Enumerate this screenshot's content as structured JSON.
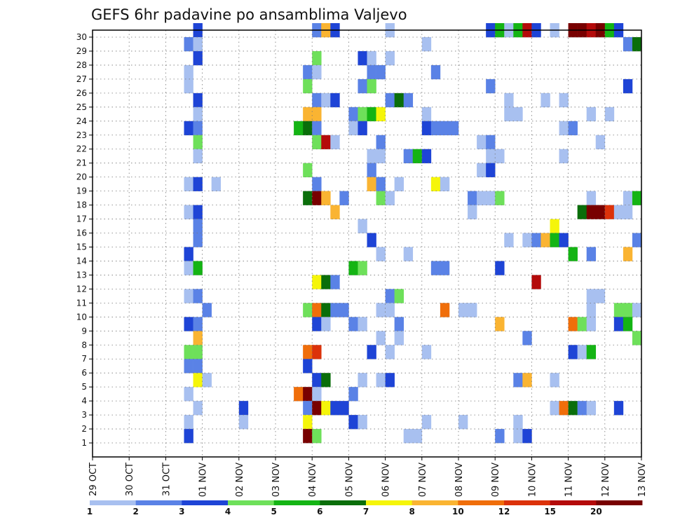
{
  "chart_data": {
    "type": "heatmap",
    "title": "GEFS 6hr padavine po ansamblima Valjevo",
    "xlabel": "",
    "ylabel": "",
    "x_ticks": [
      "29 OCT",
      "30 OCT",
      "31 OCT",
      "01 NOV",
      "02 NOV",
      "03 NOV",
      "04 NOV",
      "05 NOV",
      "06 NOV",
      "07 NOV",
      "08 NOV",
      "09 NOV",
      "10 NOV",
      "11 NOV",
      "12 NOV",
      "13 NOV"
    ],
    "x_unit": "6-hour steps from 29 OCT 00Z",
    "y_ticks": [
      1,
      2,
      3,
      4,
      5,
      6,
      7,
      8,
      9,
      10,
      11,
      12,
      13,
      14,
      15,
      16,
      17,
      18,
      19,
      20,
      21,
      22,
      23,
      24,
      25,
      26,
      27,
      28,
      29,
      30
    ],
    "y_range": [
      0,
      30
    ],
    "grid": true,
    "colorbar": {
      "position": "bottom",
      "labels": [
        "1",
        "2",
        "3",
        "4",
        "5",
        "6",
        "7",
        "8",
        "10",
        "12",
        "15",
        "20"
      ],
      "colors": [
        "#a8c0f0",
        "#5a82e6",
        "#1e44d6",
        "#6ee05a",
        "#14b414",
        "#0a6e0a",
        "#f5f50a",
        "#fab432",
        "#f06e0a",
        "#dc320a",
        "#b40a0a",
        "#780000"
      ]
    },
    "cells": [
      [
        11,
        30,
        3
      ],
      [
        24,
        30,
        2
      ],
      [
        25,
        30,
        8
      ],
      [
        26,
        30,
        3
      ],
      [
        32,
        30,
        1
      ],
      [
        43,
        30,
        3
      ],
      [
        44,
        30,
        5
      ],
      [
        45,
        30,
        1
      ],
      [
        46,
        30,
        5
      ],
      [
        47,
        30,
        11
      ],
      [
        48,
        30,
        3
      ],
      [
        50,
        30,
        1
      ],
      [
        52,
        30,
        12
      ],
      [
        53,
        30,
        12
      ],
      [
        54,
        30,
        11
      ],
      [
        55,
        30,
        12
      ],
      [
        56,
        30,
        5
      ],
      [
        57,
        30,
        3
      ],
      [
        10,
        29,
        2
      ],
      [
        11,
        29,
        1
      ],
      [
        36,
        29,
        1
      ],
      [
        58,
        29,
        2
      ],
      [
        59,
        29,
        6
      ],
      [
        11,
        28,
        3
      ],
      [
        24,
        28,
        4
      ],
      [
        29,
        28,
        3
      ],
      [
        30,
        28,
        1
      ],
      [
        32,
        28,
        1
      ],
      [
        10,
        27,
        1
      ],
      [
        23,
        27,
        2
      ],
      [
        24,
        27,
        1
      ],
      [
        30,
        27,
        2
      ],
      [
        31,
        27,
        2
      ],
      [
        37,
        27,
        2
      ],
      [
        10,
        26,
        1
      ],
      [
        23,
        26,
        4
      ],
      [
        29,
        26,
        2
      ],
      [
        30,
        26,
        4
      ],
      [
        43,
        26,
        2
      ],
      [
        58,
        26,
        3
      ],
      [
        11,
        25,
        3
      ],
      [
        24,
        25,
        2
      ],
      [
        25,
        25,
        1
      ],
      [
        26,
        25,
        3
      ],
      [
        32,
        25,
        2
      ],
      [
        33,
        25,
        6
      ],
      [
        34,
        25,
        2
      ],
      [
        45,
        25,
        1
      ],
      [
        49,
        25,
        1
      ],
      [
        51,
        25,
        1
      ],
      [
        11,
        24,
        1
      ],
      [
        23,
        24,
        8
      ],
      [
        24,
        24,
        8
      ],
      [
        28,
        24,
        2
      ],
      [
        29,
        24,
        4
      ],
      [
        30,
        24,
        5
      ],
      [
        31,
        24,
        7
      ],
      [
        36,
        24,
        1
      ],
      [
        45,
        24,
        1
      ],
      [
        46,
        24,
        1
      ],
      [
        54,
        24,
        1
      ],
      [
        56,
        24,
        1
      ],
      [
        10,
        23,
        3
      ],
      [
        11,
        23,
        2
      ],
      [
        22,
        23,
        5
      ],
      [
        23,
        23,
        6
      ],
      [
        24,
        23,
        2
      ],
      [
        28,
        23,
        1
      ],
      [
        29,
        23,
        3
      ],
      [
        36,
        23,
        3
      ],
      [
        37,
        23,
        2
      ],
      [
        38,
        23,
        2
      ],
      [
        39,
        23,
        2
      ],
      [
        51,
        23,
        1
      ],
      [
        52,
        23,
        2
      ],
      [
        11,
        22,
        4
      ],
      [
        24,
        22,
        4
      ],
      [
        25,
        22,
        11
      ],
      [
        26,
        22,
        1
      ],
      [
        31,
        22,
        2
      ],
      [
        42,
        22,
        1
      ],
      [
        43,
        22,
        2
      ],
      [
        55,
        22,
        1
      ],
      [
        11,
        21,
        1
      ],
      [
        30,
        21,
        1
      ],
      [
        31,
        21,
        1
      ],
      [
        34,
        21,
        2
      ],
      [
        35,
        21,
        5
      ],
      [
        36,
        21,
        3
      ],
      [
        43,
        21,
        1
      ],
      [
        44,
        21,
        1
      ],
      [
        51,
        21,
        1
      ],
      [
        23,
        20,
        4
      ],
      [
        30,
        20,
        2
      ],
      [
        42,
        20,
        1
      ],
      [
        43,
        20,
        3
      ],
      [
        10,
        19,
        1
      ],
      [
        11,
        19,
        3
      ],
      [
        13,
        19,
        1
      ],
      [
        24,
        19,
        2
      ],
      [
        30,
        19,
        8
      ],
      [
        31,
        19,
        2
      ],
      [
        33,
        19,
        1
      ],
      [
        37,
        19,
        7
      ],
      [
        38,
        19,
        1
      ],
      [
        23,
        18,
        6
      ],
      [
        24,
        18,
        12
      ],
      [
        25,
        18,
        8
      ],
      [
        27,
        18,
        2
      ],
      [
        31,
        18,
        4
      ],
      [
        32,
        18,
        1
      ],
      [
        41,
        18,
        2
      ],
      [
        42,
        18,
        1
      ],
      [
        43,
        18,
        1
      ],
      [
        44,
        18,
        4
      ],
      [
        54,
        18,
        1
      ],
      [
        58,
        18,
        1
      ],
      [
        59,
        18,
        5
      ],
      [
        10,
        17,
        1
      ],
      [
        11,
        17,
        3
      ],
      [
        26,
        17,
        8
      ],
      [
        41,
        17,
        1
      ],
      [
        53,
        17,
        6
      ],
      [
        54,
        17,
        12
      ],
      [
        55,
        17,
        12
      ],
      [
        56,
        17,
        10
      ],
      [
        57,
        17,
        1
      ],
      [
        58,
        17,
        1
      ],
      [
        11,
        16,
        2
      ],
      [
        29,
        16,
        1
      ],
      [
        50,
        16,
        7
      ],
      [
        11,
        15,
        2
      ],
      [
        30,
        15,
        3
      ],
      [
        45,
        15,
        1
      ],
      [
        47,
        15,
        1
      ],
      [
        48,
        15,
        2
      ],
      [
        49,
        15,
        8
      ],
      [
        50,
        15,
        5
      ],
      [
        51,
        15,
        3
      ],
      [
        59,
        15,
        2
      ],
      [
        10,
        14,
        3
      ],
      [
        31,
        14,
        1
      ],
      [
        34,
        14,
        1
      ],
      [
        52,
        14,
        5
      ],
      [
        54,
        14,
        2
      ],
      [
        58,
        14,
        8
      ],
      [
        10,
        13,
        1
      ],
      [
        11,
        13,
        5
      ],
      [
        28,
        13,
        5
      ],
      [
        29,
        13,
        4
      ],
      [
        37,
        13,
        2
      ],
      [
        38,
        13,
        2
      ],
      [
        44,
        13,
        3
      ],
      [
        24,
        12,
        7
      ],
      [
        25,
        12,
        6
      ],
      [
        26,
        12,
        2
      ],
      [
        48,
        12,
        11
      ],
      [
        10,
        11,
        1
      ],
      [
        11,
        11,
        2
      ],
      [
        32,
        11,
        2
      ],
      [
        33,
        11,
        4
      ],
      [
        54,
        11,
        1
      ],
      [
        55,
        11,
        1
      ],
      [
        12,
        10,
        2
      ],
      [
        23,
        10,
        4
      ],
      [
        24,
        10,
        9
      ],
      [
        25,
        10,
        6
      ],
      [
        26,
        10,
        2
      ],
      [
        27,
        10,
        2
      ],
      [
        31,
        10,
        1
      ],
      [
        32,
        10,
        1
      ],
      [
        38,
        10,
        9
      ],
      [
        40,
        10,
        1
      ],
      [
        41,
        10,
        1
      ],
      [
        54,
        10,
        1
      ],
      [
        57,
        10,
        4
      ],
      [
        58,
        10,
        4
      ],
      [
        59,
        10,
        1
      ],
      [
        10,
        9,
        3
      ],
      [
        11,
        9,
        2
      ],
      [
        24,
        9,
        3
      ],
      [
        25,
        9,
        1
      ],
      [
        28,
        9,
        2
      ],
      [
        29,
        9,
        1
      ],
      [
        33,
        9,
        2
      ],
      [
        44,
        9,
        8
      ],
      [
        52,
        9,
        9
      ],
      [
        53,
        9,
        4
      ],
      [
        54,
        9,
        1
      ],
      [
        57,
        9,
        3
      ],
      [
        58,
        9,
        5
      ],
      [
        11,
        8,
        8
      ],
      [
        31,
        8,
        1
      ],
      [
        33,
        8,
        1
      ],
      [
        47,
        8,
        2
      ],
      [
        59,
        8,
        4
      ],
      [
        10,
        7,
        4
      ],
      [
        11,
        7,
        4
      ],
      [
        23,
        7,
        9
      ],
      [
        24,
        7,
        10
      ],
      [
        30,
        7,
        3
      ],
      [
        32,
        7,
        1
      ],
      [
        36,
        7,
        1
      ],
      [
        52,
        7,
        3
      ],
      [
        53,
        7,
        1
      ],
      [
        54,
        7,
        5
      ],
      [
        10,
        6,
        2
      ],
      [
        11,
        6,
        2
      ],
      [
        23,
        6,
        3
      ],
      [
        11,
        5,
        7
      ],
      [
        12,
        5,
        1
      ],
      [
        24,
        5,
        3
      ],
      [
        25,
        5,
        6
      ],
      [
        29,
        5,
        1
      ],
      [
        31,
        5,
        1
      ],
      [
        32,
        5,
        3
      ],
      [
        46,
        5,
        2
      ],
      [
        47,
        5,
        8
      ],
      [
        50,
        5,
        1
      ],
      [
        10,
        4,
        1
      ],
      [
        22,
        4,
        9
      ],
      [
        23,
        4,
        12
      ],
      [
        24,
        4,
        1
      ],
      [
        28,
        4,
        2
      ],
      [
        11,
        3,
        1
      ],
      [
        16,
        3,
        3
      ],
      [
        23,
        3,
        2
      ],
      [
        24,
        3,
        12
      ],
      [
        25,
        3,
        7
      ],
      [
        26,
        3,
        3
      ],
      [
        27,
        3,
        3
      ],
      [
        50,
        3,
        1
      ],
      [
        51,
        3,
        9
      ],
      [
        52,
        3,
        6
      ],
      [
        53,
        3,
        2
      ],
      [
        54,
        3,
        1
      ],
      [
        57,
        3,
        3
      ],
      [
        10,
        2,
        1
      ],
      [
        16,
        2,
        1
      ],
      [
        23,
        2,
        7
      ],
      [
        28,
        2,
        3
      ],
      [
        29,
        2,
        1
      ],
      [
        36,
        2,
        1
      ],
      [
        40,
        2,
        1
      ],
      [
        46,
        2,
        1
      ],
      [
        23,
        1,
        12
      ],
      [
        24,
        1,
        4
      ],
      [
        34,
        1,
        1
      ],
      [
        35,
        1,
        1
      ],
      [
        44,
        1,
        2
      ],
      [
        46,
        1,
        1
      ],
      [
        47,
        1,
        3
      ],
      [
        10,
        1,
        3
      ]
    ]
  }
}
